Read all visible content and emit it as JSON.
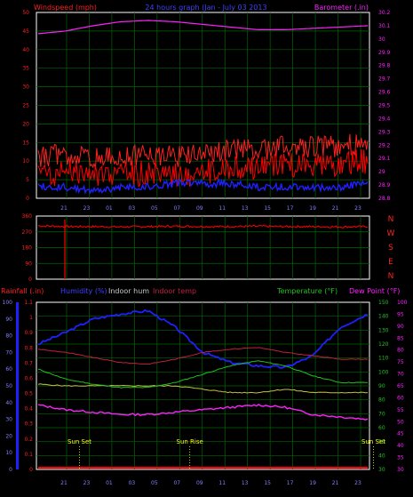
{
  "title": "24 hours graph (Jan - July 03 2013",
  "colors": {
    "wind": "#ff0000",
    "gust": "#ff2020",
    "avg": "#2020ff",
    "baro": "#ff20ff",
    "dir": "#ff0000",
    "humidity": "#2020ff",
    "indoorHum": "#c8c040",
    "indoorTemp": "#c02040",
    "temp": "#20c020",
    "dew": "#ff20ff",
    "rain": "#ff0000",
    "sun": "#ffff00",
    "grid": "#006600",
    "axisText": "#8080ff"
  },
  "hour_ticks": [
    "21",
    "23",
    "01",
    "03",
    "05",
    "07",
    "09",
    "11",
    "13",
    "15",
    "17",
    "19",
    "21",
    "23"
  ],
  "chart_data": [
    {
      "type": "line",
      "name": "wind-barometer",
      "labels": {
        "left": "Windspeed (mph)",
        "right": "Barometer (.in)"
      },
      "ylim": [
        0,
        50
      ],
      "yticks": [
        "0",
        "5",
        "10",
        "15",
        "20",
        "25",
        "30",
        "35",
        "40",
        "45",
        "50"
      ],
      "y2lim": [
        28.8,
        30.2
      ],
      "y2ticks": [
        "28.8",
        "28.9",
        "29",
        "29.1",
        "29.2",
        "29.3",
        "29.4",
        "29.5",
        "29.6",
        "29.7",
        "29.8",
        "29.9",
        "30",
        "30.1",
        "30.2"
      ],
      "x_hours": [
        0,
        2,
        4,
        6,
        8,
        10,
        12,
        14,
        16,
        18,
        20,
        22,
        24
      ],
      "series": [
        {
          "key": "wind",
          "values": [
            6,
            7,
            6,
            6,
            7,
            6,
            7,
            8,
            8,
            9,
            9,
            9,
            10
          ]
        },
        {
          "key": "avg",
          "values": [
            3,
            3,
            2,
            3,
            3,
            4,
            4,
            4,
            3,
            3,
            3,
            3,
            4
          ]
        },
        {
          "key": "baro",
          "values": [
            30.04,
            30.06,
            30.1,
            30.13,
            30.14,
            30.13,
            30.11,
            30.09,
            30.07,
            30.07,
            30.08,
            30.09,
            30.1
          ]
        }
      ]
    },
    {
      "type": "line",
      "name": "wind-direction",
      "labels": {
        "right": [
          "N",
          "W",
          "S",
          "E",
          "N"
        ]
      },
      "ylim": [
        0,
        360
      ],
      "yticks": [
        "0",
        "90",
        "180",
        "270",
        "360"
      ],
      "x_hours": [
        0,
        2,
        4,
        6,
        8,
        10,
        12,
        14,
        16,
        18,
        20,
        22,
        24
      ],
      "series": [
        {
          "key": "dir",
          "values": [
            305,
            300,
            300,
            298,
            300,
            302,
            300,
            300,
            302,
            300,
            300,
            298,
            300
          ]
        }
      ]
    },
    {
      "type": "line",
      "name": "rain-humidity-temperature",
      "labels": {
        "rainfall": "Rainfall (.in)",
        "humidity": "Humidity (%)",
        "indoorHum": "Indoor hum",
        "indoorTemp": "Indoor temp",
        "temperature": "Temperature (°F)",
        "dewPoint": "Dew Point (°F)"
      },
      "ylim_humidity": [
        0,
        100
      ],
      "yticks_humidity": [
        "0",
        "10",
        "20",
        "30",
        "40",
        "50",
        "60",
        "70",
        "80",
        "90",
        "100"
      ],
      "ylim_rain": [
        0,
        1.1
      ],
      "yticks_rain": [
        "0",
        "0.1",
        "0.2",
        "0.3",
        "0.4",
        "0.5",
        "0.6",
        "0.7",
        "0.8",
        "0.9",
        "1",
        "1.1"
      ],
      "ylim_temp": [
        30,
        150
      ],
      "yticks_temp": [
        "30",
        "40",
        "50",
        "60",
        "70",
        "80",
        "90",
        "100",
        "110",
        "120",
        "130",
        "140",
        "150"
      ],
      "y4lim": [
        30,
        100
      ],
      "y4ticks": [
        "30",
        "35",
        "40",
        "45",
        "50",
        "55",
        "60",
        "65",
        "70",
        "75",
        "80",
        "85",
        "90",
        "95",
        "100"
      ],
      "x_hours": [
        0,
        2,
        4,
        6,
        8,
        10,
        12,
        14,
        16,
        18,
        20,
        22,
        24
      ],
      "series": [
        {
          "key": "humidity",
          "values": [
            75,
            82,
            90,
            93,
            95,
            85,
            70,
            64,
            62,
            61,
            68,
            85,
            93
          ]
        },
        {
          "key": "indoorHum",
          "values": [
            51,
            50,
            50,
            50,
            50,
            50,
            48,
            46,
            46,
            48,
            46,
            46,
            46
          ]
        },
        {
          "key": "indoorTemp",
          "values": [
            72,
            70,
            67,
            64,
            63,
            66,
            70,
            72,
            73,
            70,
            68,
            66,
            66
          ]
        },
        {
          "key": "temp",
          "values": [
            60,
            54,
            51,
            49,
            49,
            52,
            57,
            62,
            65,
            62,
            56,
            52,
            52
          ]
        },
        {
          "key": "dew",
          "values": [
            57,
            55,
            54,
            53,
            53,
            54,
            55,
            56,
            57,
            56,
            53,
            52,
            51
          ]
        },
        {
          "key": "rain",
          "values": [
            0,
            0,
            0,
            0,
            0,
            0,
            0,
            0,
            0,
            0,
            0,
            0,
            0
          ]
        }
      ],
      "sun_events": [
        {
          "label": "Sun Set",
          "hour": 1.2
        },
        {
          "label": "Sun Rise",
          "hour": 10.2
        },
        {
          "label": "Sun Set",
          "hour": 25.2
        }
      ]
    }
  ]
}
